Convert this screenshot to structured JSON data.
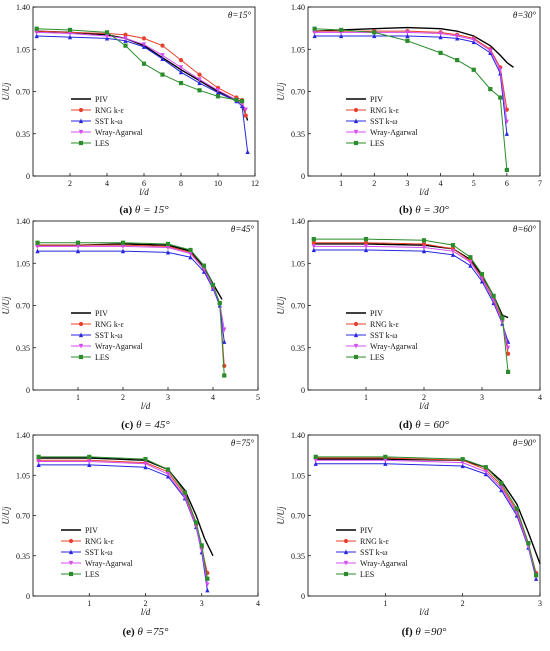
{
  "legend_labels": [
    "PIV",
    "RNG k-ε",
    "SST k-ω",
    "Wray-Agarwal",
    "LES"
  ],
  "series_colors": {
    "PIV": "#000000",
    "RNG k-ε": "#e8402c",
    "SST k-ω": "#2626e0",
    "Wray-Agarwal": "#d44cf0",
    "LES": "#2a8c2a"
  },
  "chart_data": [
    {
      "type": "line",
      "caption_prefix": "(a)",
      "caption_theta": "θ = 15°",
      "annotation": "θ=15°",
      "xlabel": "l/d",
      "ylabel": "U/Uj",
      "xlim": [
        0,
        12
      ],
      "ylim": [
        0,
        1.4
      ],
      "xticks": [
        2,
        4,
        6,
        8,
        10,
        12
      ],
      "yticks": [
        0,
        0.35,
        0.7,
        1.05,
        1.4
      ],
      "ytick_labels": [
        "0",
        "0.35",
        "0.70",
        "1.05",
        "1.40"
      ],
      "legend_position": "center-left",
      "series": [
        {
          "name": "PIV",
          "x": [
            0.2,
            2,
            4,
            5,
            6,
            7,
            8,
            9,
            10,
            11,
            11.3,
            11.6
          ],
          "y": [
            1.2,
            1.19,
            1.17,
            1.14,
            1.08,
            0.98,
            0.88,
            0.79,
            0.7,
            0.63,
            0.6,
            0.46
          ]
        },
        {
          "name": "RNG k-ε",
          "x": [
            0.2,
            2,
            4,
            5,
            6,
            7,
            8,
            9,
            10,
            11,
            11.3,
            11.5
          ],
          "y": [
            1.2,
            1.19,
            1.18,
            1.17,
            1.14,
            1.08,
            0.96,
            0.84,
            0.73,
            0.65,
            0.63,
            0.5
          ]
        },
        {
          "name": "SST k-ω",
          "x": [
            0.2,
            2,
            4,
            5,
            6,
            7,
            8,
            9,
            10,
            11,
            11.3,
            11.6
          ],
          "y": [
            1.16,
            1.15,
            1.14,
            1.12,
            1.07,
            0.97,
            0.86,
            0.77,
            0.69,
            0.62,
            0.58,
            0.2
          ]
        },
        {
          "name": "Wray-Agarwal",
          "x": [
            0.2,
            2,
            4,
            5,
            6,
            7,
            8,
            9,
            10,
            11,
            11.3,
            11.5
          ],
          "y": [
            1.19,
            1.18,
            1.16,
            1.14,
            1.09,
            1.0,
            0.9,
            0.8,
            0.71,
            0.63,
            0.6,
            0.55
          ]
        },
        {
          "name": "LES",
          "x": [
            0.2,
            2,
            4,
            5,
            6,
            7,
            8,
            9,
            10,
            11,
            11.3
          ],
          "y": [
            1.22,
            1.21,
            1.19,
            1.08,
            0.93,
            0.84,
            0.77,
            0.71,
            0.66,
            0.63,
            0.62
          ]
        }
      ]
    },
    {
      "type": "line",
      "caption_prefix": "(b)",
      "caption_theta": "θ = 30°",
      "annotation": "θ=30°",
      "xlabel": "l/d",
      "ylabel": "U/Uj",
      "xlim": [
        0,
        7
      ],
      "ylim": [
        0,
        1.4
      ],
      "xticks": [
        1,
        2,
        3,
        4,
        5,
        6,
        7
      ],
      "yticks": [
        0,
        0.35,
        0.7,
        1.05,
        1.4
      ],
      "ytick_labels": [
        "0",
        "0.35",
        "0.70",
        "1.05",
        "1.40"
      ],
      "legend_position": "center-left",
      "series": [
        {
          "name": "PIV",
          "x": [
            0.2,
            1,
            2,
            3,
            4,
            4.5,
            5,
            5.5,
            5.8,
            6.0,
            6.2
          ],
          "y": [
            1.2,
            1.21,
            1.22,
            1.23,
            1.22,
            1.2,
            1.16,
            1.08,
            1.0,
            0.94,
            0.9
          ]
        },
        {
          "name": "RNG k-ε",
          "x": [
            0.2,
            1,
            2,
            3,
            4,
            4.5,
            5,
            5.5,
            5.8,
            6.0
          ],
          "y": [
            1.2,
            1.2,
            1.2,
            1.2,
            1.19,
            1.17,
            1.14,
            1.05,
            0.9,
            0.55
          ]
        },
        {
          "name": "SST k-ω",
          "x": [
            0.2,
            1,
            2,
            3,
            4,
            4.5,
            5,
            5.5,
            5.8,
            6.0
          ],
          "y": [
            1.16,
            1.16,
            1.16,
            1.16,
            1.15,
            1.14,
            1.11,
            1.02,
            0.85,
            0.35
          ]
        },
        {
          "name": "Wray-Agarwal",
          "x": [
            0.2,
            1,
            2,
            3,
            4,
            4.5,
            5,
            5.5,
            5.8,
            6.0
          ],
          "y": [
            1.19,
            1.19,
            1.19,
            1.19,
            1.18,
            1.16,
            1.13,
            1.04,
            0.88,
            0.45
          ]
        },
        {
          "name": "LES",
          "x": [
            0.2,
            1,
            2,
            3,
            4,
            4.5,
            5,
            5.5,
            5.8,
            6.0
          ],
          "y": [
            1.22,
            1.21,
            1.19,
            1.12,
            1.02,
            0.96,
            0.88,
            0.72,
            0.65,
            0.05
          ]
        }
      ]
    },
    {
      "type": "line",
      "caption_prefix": "(c)",
      "caption_theta": "θ = 45°",
      "annotation": "θ=45°",
      "xlabel": "l/d",
      "ylabel": "U/Uj",
      "xlim": [
        0,
        5
      ],
      "ylim": [
        0,
        1.4
      ],
      "xticks": [
        1,
        2,
        3,
        4,
        5
      ],
      "yticks": [
        0,
        0.35,
        0.7,
        1.05,
        1.4
      ],
      "ytick_labels": [
        "0",
        "0.35",
        "0.70",
        "1.05",
        "1.40"
      ],
      "legend_position": "center-left",
      "series": [
        {
          "name": "PIV",
          "x": [
            0.1,
            1,
            2,
            3,
            3.5,
            3.8,
            4.0,
            4.2
          ],
          "y": [
            1.2,
            1.2,
            1.21,
            1.2,
            1.15,
            1.02,
            0.88,
            0.75
          ]
        },
        {
          "name": "RNG k-ε",
          "x": [
            0.1,
            1,
            2,
            3,
            3.5,
            3.8,
            4.0,
            4.15,
            4.25
          ],
          "y": [
            1.2,
            1.2,
            1.2,
            1.19,
            1.14,
            1.0,
            0.85,
            0.72,
            0.2
          ]
        },
        {
          "name": "SST k-ω",
          "x": [
            0.1,
            1,
            2,
            3,
            3.5,
            3.8,
            4.0,
            4.15,
            4.25
          ],
          "y": [
            1.15,
            1.15,
            1.15,
            1.14,
            1.1,
            0.98,
            0.84,
            0.7,
            0.4
          ]
        },
        {
          "name": "Wray-Agarwal",
          "x": [
            0.1,
            1,
            2,
            3,
            3.5,
            3.8,
            4.0,
            4.15,
            4.25
          ],
          "y": [
            1.19,
            1.19,
            1.19,
            1.18,
            1.13,
            1.0,
            0.85,
            0.72,
            0.5
          ]
        },
        {
          "name": "LES",
          "x": [
            0.1,
            1,
            2,
            3,
            3.5,
            3.8,
            4.0,
            4.15,
            4.25
          ],
          "y": [
            1.22,
            1.22,
            1.22,
            1.21,
            1.16,
            1.03,
            0.87,
            0.72,
            0.12
          ]
        }
      ]
    },
    {
      "type": "line",
      "caption_prefix": "(d)",
      "caption_theta": "θ = 60°",
      "annotation": "θ=60°",
      "xlabel": "l/d",
      "ylabel": "U/Uj",
      "xlim": [
        0,
        4
      ],
      "ylim": [
        0,
        1.4
      ],
      "xticks": [
        1,
        2,
        3,
        4
      ],
      "yticks": [
        0,
        0.35,
        0.7,
        1.05,
        1.4
      ],
      "ytick_labels": [
        "0",
        "0.35",
        "0.70",
        "1.05",
        "1.40"
      ],
      "legend_position": "center-left",
      "series": [
        {
          "name": "PIV",
          "x": [
            0.1,
            1,
            2,
            2.5,
            2.8,
            3.0,
            3.2,
            3.35,
            3.45
          ],
          "y": [
            1.21,
            1.21,
            1.2,
            1.17,
            1.08,
            0.95,
            0.78,
            0.62,
            0.6
          ]
        },
        {
          "name": "RNG k-ε",
          "x": [
            0.1,
            1,
            2,
            2.5,
            2.8,
            3.0,
            3.2,
            3.35,
            3.45
          ],
          "y": [
            1.22,
            1.22,
            1.21,
            1.17,
            1.07,
            0.93,
            0.75,
            0.58,
            0.3
          ]
        },
        {
          "name": "SST k-ω",
          "x": [
            0.1,
            1,
            2,
            2.5,
            2.8,
            3.0,
            3.2,
            3.35,
            3.45
          ],
          "y": [
            1.16,
            1.16,
            1.15,
            1.12,
            1.03,
            0.9,
            0.72,
            0.55,
            0.4
          ]
        },
        {
          "name": "Wray-Agarwal",
          "x": [
            0.1,
            1,
            2,
            2.5,
            2.8,
            3.0,
            3.2,
            3.35,
            3.45
          ],
          "y": [
            1.19,
            1.19,
            1.18,
            1.15,
            1.06,
            0.92,
            0.74,
            0.56,
            0.35
          ]
        },
        {
          "name": "LES",
          "x": [
            0.1,
            1,
            2,
            2.5,
            2.8,
            3.0,
            3.2,
            3.35,
            3.45
          ],
          "y": [
            1.25,
            1.25,
            1.24,
            1.2,
            1.1,
            0.96,
            0.78,
            0.6,
            0.15
          ]
        }
      ]
    },
    {
      "type": "line",
      "caption_prefix": "(e)",
      "caption_theta": "θ =75°",
      "annotation": "θ=75°",
      "xlabel": "l/d",
      "ylabel": "U/Uj",
      "xlim": [
        0,
        4
      ],
      "ylim": [
        0,
        1.4
      ],
      "xticks": [
        1,
        2,
        3,
        4
      ],
      "yticks": [
        0,
        0.35,
        0.7,
        1.05,
        1.4
      ],
      "ytick_labels": [
        "0",
        "0.35",
        "0.70",
        "1.05",
        "1.40"
      ],
      "legend_position": "bottom-left",
      "series": [
        {
          "name": "PIV",
          "x": [
            0.1,
            1,
            2,
            2.4,
            2.7,
            2.9,
            3.05,
            3.2
          ],
          "y": [
            1.2,
            1.2,
            1.18,
            1.1,
            0.92,
            0.7,
            0.5,
            0.35
          ]
        },
        {
          "name": "RNG k-ε",
          "x": [
            0.1,
            1,
            2,
            2.4,
            2.7,
            2.9,
            3.0,
            3.1
          ],
          "y": [
            1.18,
            1.18,
            1.16,
            1.08,
            0.88,
            0.62,
            0.42,
            0.2
          ]
        },
        {
          "name": "SST k-ω",
          "x": [
            0.1,
            1,
            2,
            2.4,
            2.7,
            2.9,
            3.0,
            3.1
          ],
          "y": [
            1.14,
            1.14,
            1.12,
            1.04,
            0.85,
            0.6,
            0.38,
            0.05
          ]
        },
        {
          "name": "Wray-Agarwal",
          "x": [
            0.1,
            1,
            2,
            2.4,
            2.7,
            2.9,
            3.0,
            3.1
          ],
          "y": [
            1.17,
            1.17,
            1.15,
            1.06,
            0.86,
            0.61,
            0.4,
            0.1
          ]
        },
        {
          "name": "LES",
          "x": [
            0.1,
            1,
            2,
            2.4,
            2.7,
            2.9,
            3.0,
            3.1
          ],
          "y": [
            1.21,
            1.21,
            1.19,
            1.1,
            0.9,
            0.64,
            0.44,
            0.15
          ]
        }
      ]
    },
    {
      "type": "line",
      "caption_prefix": "(f)",
      "caption_theta": "θ =90°",
      "annotation": "θ=90°",
      "xlabel": "l/d",
      "ylabel": "U/Uj",
      "xlim": [
        0,
        3
      ],
      "ylim": [
        0,
        1.4
      ],
      "xticks": [
        1,
        2,
        3
      ],
      "yticks": [
        0,
        0.35,
        0.7,
        1.05,
        1.4
      ],
      "ytick_labels": [
        "0",
        "0.35",
        "0.70",
        "1.05",
        "1.40"
      ],
      "legend_position": "bottom-left",
      "series": [
        {
          "name": "PIV",
          "x": [
            0.1,
            1,
            2,
            2.3,
            2.5,
            2.7,
            2.85,
            3.0
          ],
          "y": [
            1.19,
            1.19,
            1.18,
            1.12,
            1.0,
            0.8,
            0.55,
            0.28
          ]
        },
        {
          "name": "RNG k-ε",
          "x": [
            0.1,
            1,
            2,
            2.3,
            2.5,
            2.7,
            2.85,
            2.95
          ],
          "y": [
            1.2,
            1.2,
            1.18,
            1.1,
            0.96,
            0.74,
            0.45,
            0.2
          ]
        },
        {
          "name": "SST k-ω",
          "x": [
            0.1,
            1,
            2,
            2.3,
            2.5,
            2.7,
            2.85,
            2.95
          ],
          "y": [
            1.15,
            1.15,
            1.13,
            1.06,
            0.92,
            0.7,
            0.42,
            0.15
          ]
        },
        {
          "name": "Wray-Agarwal",
          "x": [
            0.1,
            1,
            2,
            2.3,
            2.5,
            2.7,
            2.85,
            2.95
          ],
          "y": [
            1.18,
            1.18,
            1.16,
            1.08,
            0.94,
            0.72,
            0.43,
            0.17
          ]
        },
        {
          "name": "LES",
          "x": [
            0.1,
            1,
            2,
            2.3,
            2.5,
            2.7,
            2.85,
            2.95
          ],
          "y": [
            1.21,
            1.21,
            1.19,
            1.12,
            0.98,
            0.76,
            0.46,
            0.18
          ]
        }
      ]
    }
  ]
}
